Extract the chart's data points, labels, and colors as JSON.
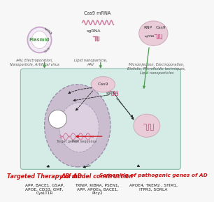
{
  "bg_color": "#f7f7f7",
  "cell_bg": "#d4ece5",
  "nucleus_outer_color": "#cbbdd0",
  "nucleus_inner_color": "#ddd0e0",
  "plasmid_ring_color": "#c8a8cc",
  "plasmid_fill": "#f2eaf4",
  "plasmid_inner_fill": "#ffffff",
  "cas9_blob_color": "#eaccd8",
  "cas9_blob_edge": "#ccaabb",
  "rna_wave_color": "#cc7799",
  "rna_pulse_color": "#cc7799",
  "green_color": "#4a9a4a",
  "arrow_dark": "#222222",
  "red_color": "#cc1111",
  "vesicle_fill": "#ffffff",
  "vesicle_edge": "#999999",
  "dna_color": "#cc7799",
  "cell_edge": "#88bbaa",
  "plasmid_label": "Plasmid",
  "plasmid_sgrna": "sgRNA",
  "plasmid_cas9": "Cas9",
  "mrna_title": "Cas9 mRNA",
  "sgrna_title": "sgRNA",
  "rnp_label": "RNP",
  "cas9_label": "Cas9",
  "sgrna_rnp": "sgRNA",
  "top_left": "AAV, Electroporation,\nNanoparticle, Artificial virus",
  "top_mid": "Lipid nanoparticle,\nAAV",
  "top_right": "Microinjection, Electroporation,\nBiolistic, Microfluidic techniques,\nLipid nanoparticles",
  "cas9_cell_label": "Cas9",
  "sgrna_cell_label": "sgRNA",
  "target_genes": "Target genes",
  "pam_seq": "PAM sequence",
  "title_left": "Targeted Therapy of AD",
  "body_left": "APP, BACE1, GSAP,\nAPOE, CD33, GMF,\nCysLT1R",
  "title_mid": "AD model construction",
  "body_mid": "TXNIP, KIBRA, PSEN1,\nAPP, APOEs, BACE1,\nPlcy2",
  "title_right": "Screening of pathogenic genes of AD",
  "body_right": "APOE4, TREM2 , STIM1,\nITPR3, SORLA",
  "fs_small": 5.2,
  "fs_tiny": 4.5,
  "fs_label": 5.5,
  "fs_title": 5.8
}
